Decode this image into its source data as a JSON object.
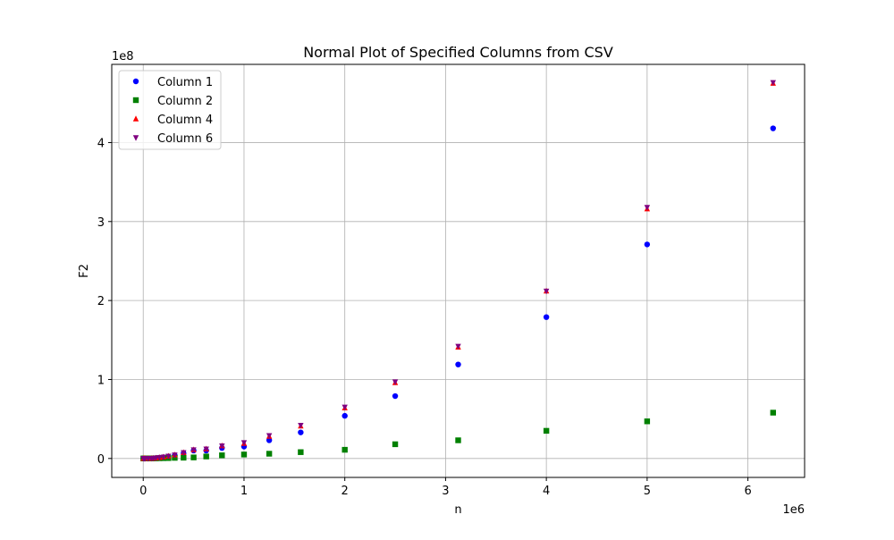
{
  "chart_data": {
    "type": "scatter",
    "title": "Normal Plot of Specified Columns from CSV",
    "xlabel": "n",
    "ylabel": "F2",
    "x_offset_label": "1e6",
    "y_offset_label": "1e8",
    "xlim": [
      -0.3125,
      6.5625
    ],
    "ylim": [
      -0.24,
      4.99
    ],
    "x_unit_scale": "1e6",
    "y_unit_scale": "1e8",
    "xticks": [
      0,
      1,
      2,
      3,
      4,
      5,
      6
    ],
    "yticks": [
      0,
      1,
      2,
      3,
      4
    ],
    "grid": true,
    "legend_position": "upper-left",
    "x": [
      0.001,
      0.01,
      0.02,
      0.05,
      0.08,
      0.1,
      0.125,
      0.16,
      0.2,
      0.25,
      0.3125,
      0.4,
      0.5,
      0.625,
      0.78125,
      1.0,
      1.25,
      1.5625,
      2.0,
      2.5,
      3.125,
      4.0,
      5.0,
      6.25
    ],
    "series": [
      {
        "name": "Column 1",
        "color": "#0000ff",
        "marker": "circle",
        "values": [
          0.0,
          0.0,
          0.0,
          0.0002,
          0.0008,
          0.002,
          0.005,
          0.009,
          0.015,
          0.025,
          0.04,
          0.067,
          0.1,
          0.1,
          0.133,
          0.15,
          0.23,
          0.33,
          0.54,
          0.79,
          1.19,
          1.79,
          2.71,
          4.18
        ]
      },
      {
        "name": "Column 2",
        "color": "#008000",
        "marker": "square",
        "values": [
          0.0,
          0.0,
          0.0,
          0.0002,
          0.0005,
          0.001,
          0.002,
          0.003,
          0.004,
          0.005,
          0.008,
          0.01,
          0.013,
          0.025,
          0.04,
          0.05,
          0.06,
          0.08,
          0.11,
          0.18,
          0.23,
          0.35,
          0.47,
          0.58
        ]
      },
      {
        "name": "Column 4",
        "color": "#ff0000",
        "marker": "triangle-up",
        "values": [
          0.0,
          0.0,
          0.0,
          0.0003,
          0.001,
          0.003,
          0.006,
          0.011,
          0.018,
          0.03,
          0.045,
          0.075,
          0.11,
          0.12,
          0.16,
          0.19,
          0.28,
          0.41,
          0.64,
          0.96,
          1.41,
          2.12,
          3.16,
          4.75
        ]
      },
      {
        "name": "Column 6",
        "color": "#800080",
        "marker": "triangle-down",
        "values": [
          0.0,
          0.0,
          0.0,
          0.0003,
          0.001,
          0.003,
          0.006,
          0.011,
          0.018,
          0.03,
          0.045,
          0.075,
          0.11,
          0.12,
          0.16,
          0.2,
          0.29,
          0.42,
          0.65,
          0.97,
          1.42,
          2.12,
          3.18,
          4.76
        ]
      }
    ]
  }
}
